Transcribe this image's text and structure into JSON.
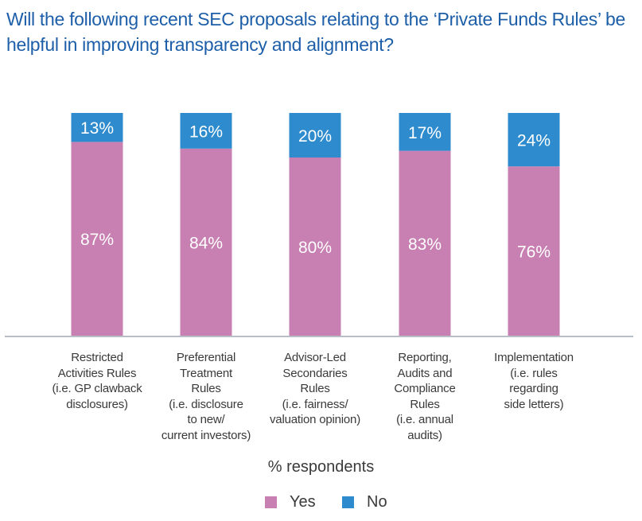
{
  "chart_data": {
    "type": "bar",
    "stacked": true,
    "title": "Will the following recent SEC proposals relating to the ‘Private Funds Rules’ be helpful in improving transparency and alignment?",
    "ylabel": "% respondents",
    "categories": [
      [
        "Restricted",
        "Activities Rules",
        "(i.e. GP clawback",
        "disclosures)"
      ],
      [
        "Preferential",
        "Treatment",
        "Rules",
        "(i.e. disclosure",
        "to new/",
        "current investors)"
      ],
      [
        "Advisor-Led",
        "Secondaries",
        "Rules",
        "(i.e. fairness/",
        "valuation opinion)"
      ],
      [
        "Reporting,",
        "Audits and",
        "Compliance",
        "Rules",
        "(i.e. annual",
        "audits)"
      ],
      [
        "Implementation",
        "(i.e. rules",
        "regarding",
        "side letters)"
      ]
    ],
    "series": [
      {
        "name": "Yes",
        "color": "#c87fb2",
        "values": [
          87,
          84,
          80,
          83,
          76
        ],
        "labels": [
          "87%",
          "84%",
          "80%",
          "83%",
          "76%"
        ]
      },
      {
        "name": "No",
        "color": "#2e8bcd",
        "values": [
          13,
          16,
          20,
          17,
          24
        ],
        "labels": [
          "13%",
          "16%",
          "20%",
          "17%",
          "24%"
        ]
      }
    ],
    "ylim": [
      0,
      100
    ],
    "grid": false,
    "legend": "bottom"
  }
}
